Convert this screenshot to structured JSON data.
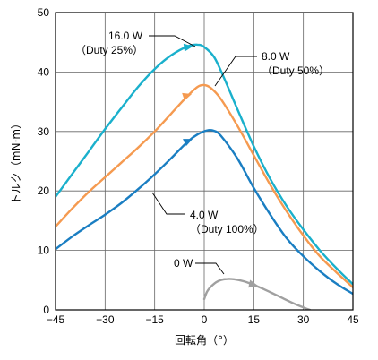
{
  "chart_data": {
    "type": "line",
    "xlabel": "回転角（°）",
    "ylabel": "トルク（mN·m）",
    "xlim": [
      -45,
      45
    ],
    "ylim": [
      0,
      50
    ],
    "xticks": [
      -45,
      -30,
      -15,
      0,
      15,
      30,
      45
    ],
    "xtick_labels": [
      "−45",
      "−30",
      "−15",
      "0",
      "15",
      "30",
      "45"
    ],
    "yticks": [
      0,
      10,
      20,
      30,
      40,
      50
    ],
    "ytick_labels": [
      "0",
      "10",
      "20",
      "30",
      "40",
      "50"
    ],
    "grid": true,
    "series": [
      {
        "color": "#1ab0cc",
        "x": [
          -45,
          -40,
          -35,
          -30,
          -25,
          -20,
          -15,
          -10,
          -5,
          -2,
          0,
          3,
          6,
          10,
          15,
          20,
          25,
          30,
          35,
          40,
          45
        ],
        "y": [
          19,
          22.8,
          26.6,
          30.4,
          34,
          37.5,
          40.5,
          42.8,
          44.3,
          44.6,
          44.2,
          42.5,
          39,
          33.8,
          27.5,
          22,
          17.4,
          13.5,
          10,
          7,
          4.3
        ]
      },
      {
        "color": "#f59a50",
        "x": [
          -45,
          -40,
          -35,
          -30,
          -25,
          -20,
          -15,
          -10,
          -5,
          -2,
          0,
          2,
          5,
          10,
          15,
          20,
          25,
          30,
          35,
          40,
          45
        ],
        "y": [
          14,
          17,
          19.8,
          22.3,
          24.8,
          27.3,
          30,
          33,
          36,
          37.5,
          37.8,
          37.3,
          35.5,
          31,
          26,
          21,
          16.5,
          12.5,
          9,
          6.3,
          3.8
        ]
      },
      {
        "color": "#1a7ec2",
        "x": [
          -45,
          -40,
          -35,
          -30,
          -25,
          -20,
          -15,
          -10,
          -5,
          -2,
          1,
          3,
          5,
          10,
          15,
          20,
          25,
          30,
          35,
          40,
          45
        ],
        "y": [
          10.2,
          12.3,
          14.2,
          16,
          18,
          20.3,
          22.8,
          25.5,
          28.3,
          29.5,
          30.2,
          30.1,
          29.3,
          25.5,
          20.5,
          16,
          12,
          9,
          6.5,
          4.4,
          2.7
        ]
      },
      {
        "color": "#a0a0a0",
        "x": [
          0,
          1,
          3,
          5,
          7,
          9,
          12,
          15,
          18,
          21,
          24,
          27,
          30,
          32
        ],
        "y": [
          1.8,
          3.2,
          4.4,
          5,
          5.2,
          5.15,
          4.8,
          4.2,
          3.5,
          2.7,
          1.9,
          1.1,
          0.4,
          0
        ]
      }
    ],
    "annotations": [
      {
        "lines": [
          "16.0 W",
          "（Duty 25%）"
        ]
      },
      {
        "lines": [
          "8.0 W",
          "（Duty 50%）"
        ]
      },
      {
        "lines": [
          "4.0 W",
          "（Duty 100%）"
        ]
      },
      {
        "lines": [
          "0 W"
        ]
      }
    ]
  }
}
